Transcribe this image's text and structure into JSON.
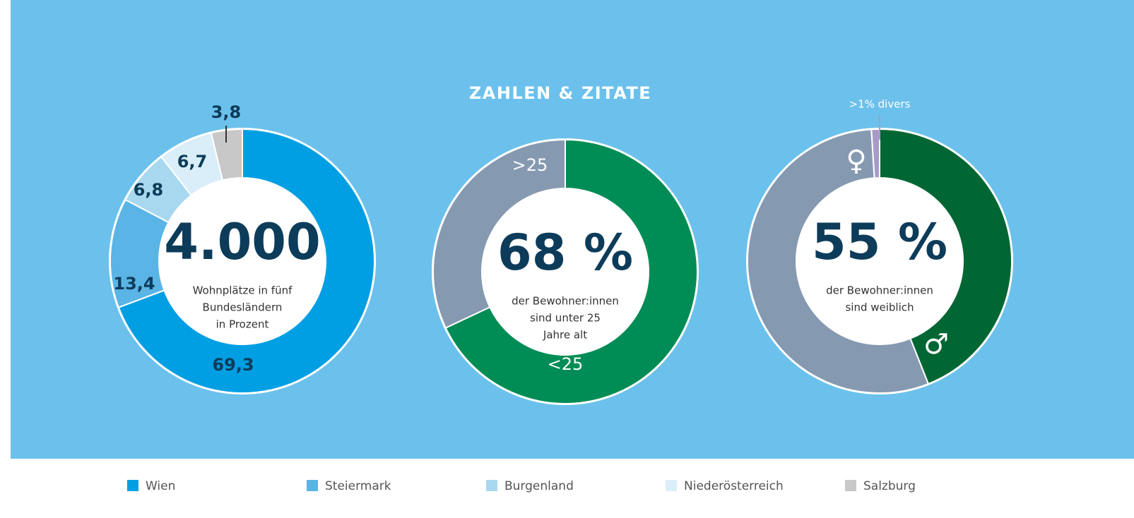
{
  "title": "ZAHLEN & ZITATE",
  "chart_data": [
    {
      "type": "pie",
      "categories": [
        "Wien",
        "Steiermark",
        "Burgenland",
        "Niederösterreich",
        "Salzburg"
      ],
      "values": [
        69.3,
        13.4,
        6.8,
        6.7,
        3.8
      ],
      "value_labels": [
        "69,3",
        "13,4",
        "6,8",
        "6,7",
        "3,8"
      ],
      "colors": [
        "#009fe3",
        "#5ab4e5",
        "#a8d8f0",
        "#d9eef8",
        "#c8c8c8"
      ],
      "center_label": "4.000",
      "caption": [
        "Wohnplätze in fünf",
        "Bundesländern",
        "in Prozent"
      ],
      "legend": "bottom"
    },
    {
      "type": "pie",
      "categories": [
        "<25",
        ">25"
      ],
      "values": [
        68,
        32
      ],
      "colors": [
        "#008c55",
        "#8599b1"
      ],
      "center_label": "68 %",
      "caption": [
        "der Bewohner:innen",
        "sind unter 25",
        "Jahre alt"
      ]
    },
    {
      "type": "pie",
      "categories": [
        "♂",
        "♀",
        ">1% divers"
      ],
      "values": [
        44,
        55,
        1
      ],
      "colors": [
        "#006633",
        "#8599b1",
        "#a89ac8"
      ],
      "center_label": "55 %",
      "caption": [
        "der Bewohner:innen",
        "sind weiblich"
      ]
    }
  ]
}
